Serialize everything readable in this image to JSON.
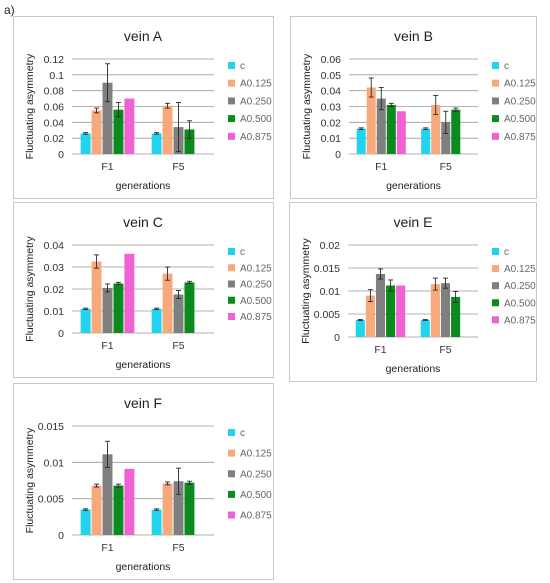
{
  "figure_label": "a)",
  "legend_colors": {
    "c": "#22d3ee",
    "A0.125": "#f7a97c",
    "A0.250": "#7f7f7f",
    "A0.500": "#0b8a1d",
    "A0.875": "#f062d2"
  },
  "chart_data": [
    {
      "type": "bar",
      "title": "vein A",
      "xlabel": "generations",
      "ylabel": "Fluctuating asymmetry",
      "categories": [
        "F1",
        "F5"
      ],
      "ylim": [
        0,
        0.12
      ],
      "yticks": [
        "0",
        "0.02",
        "0.04",
        "0.06",
        "0.08",
        "0.1",
        "0.12"
      ],
      "grid": true,
      "legend_position": "right",
      "series": [
        {
          "name": "c",
          "values": [
            0.026,
            0.026
          ],
          "errors": [
            0.001,
            0.001
          ]
        },
        {
          "name": "A0.125",
          "values": [
            0.055,
            0.061
          ],
          "errors": [
            0.003,
            0.003
          ]
        },
        {
          "name": "A0.250",
          "values": [
            0.09,
            0.034
          ],
          "errors": [
            0.024,
            0.031
          ]
        },
        {
          "name": "A0.500",
          "values": [
            0.056,
            0.031
          ],
          "errors": [
            0.009,
            0.011
          ]
        },
        {
          "name": "A0.875",
          "values": [
            0.07,
            null
          ],
          "errors": [
            0,
            null
          ]
        }
      ]
    },
    {
      "type": "bar",
      "title": "vein B",
      "xlabel": "generations",
      "ylabel": "Fluctuating asymmetry",
      "categories": [
        "F1",
        "F5"
      ],
      "ylim": [
        0,
        0.06
      ],
      "yticks": [
        "0",
        "0.01",
        "0.02",
        "0.03",
        "0.04",
        "0.05",
        "0.06"
      ],
      "grid": true,
      "legend_position": "right",
      "series": [
        {
          "name": "c",
          "values": [
            0.016,
            0.016
          ],
          "errors": [
            0.0005,
            0.0005
          ]
        },
        {
          "name": "A0.125",
          "values": [
            0.042,
            0.031
          ],
          "errors": [
            0.006,
            0.006
          ]
        },
        {
          "name": "A0.250",
          "values": [
            0.035,
            0.02
          ],
          "errors": [
            0.007,
            0.007
          ]
        },
        {
          "name": "A0.500",
          "values": [
            0.031,
            0.028
          ],
          "errors": [
            0.001,
            0.001
          ]
        },
        {
          "name": "A0.875",
          "values": [
            0.027,
            null
          ],
          "errors": [
            0,
            null
          ]
        }
      ]
    },
    {
      "type": "bar",
      "title": "vein C",
      "xlabel": "generations",
      "ylabel": "Fluctuating asymmetry",
      "categories": [
        "F1",
        "F5"
      ],
      "ylim": [
        0,
        0.04
      ],
      "yticks": [
        "0",
        "0.01",
        "0.02",
        "0.03",
        "0.04"
      ],
      "grid": true,
      "legend_position": "right",
      "series": [
        {
          "name": "c",
          "values": [
            0.011,
            0.011
          ],
          "errors": [
            0.0003,
            0.0003
          ]
        },
        {
          "name": "A0.125",
          "values": [
            0.0325,
            0.027
          ],
          "errors": [
            0.003,
            0.003
          ]
        },
        {
          "name": "A0.250",
          "values": [
            0.0205,
            0.0175
          ],
          "errors": [
            0.0018,
            0.0018
          ]
        },
        {
          "name": "A0.500",
          "values": [
            0.0225,
            0.023
          ],
          "errors": [
            0.0005,
            0.0005
          ]
        },
        {
          "name": "A0.875",
          "values": [
            0.036,
            null
          ],
          "errors": [
            0,
            null
          ]
        }
      ]
    },
    {
      "type": "bar",
      "title": "vein E",
      "xlabel": "generations",
      "ylabel": "Fluctuating asymmetry",
      "categories": [
        "F1",
        "F5"
      ],
      "ylim": [
        0,
        0.02
      ],
      "yticks": [
        "0",
        "0.005",
        "0.01",
        "0.015",
        "0.02"
      ],
      "grid": true,
      "legend_position": "right",
      "series": [
        {
          "name": "c",
          "values": [
            0.0037,
            0.0037
          ],
          "errors": [
            0.0001,
            0.0001
          ]
        },
        {
          "name": "A0.125",
          "values": [
            0.009,
            0.0115
          ],
          "errors": [
            0.0013,
            0.0013
          ]
        },
        {
          "name": "A0.250",
          "values": [
            0.0137,
            0.0117
          ],
          "errors": [
            0.0011,
            0.0011
          ]
        },
        {
          "name": "A0.500",
          "values": [
            0.0112,
            0.0087
          ],
          "errors": [
            0.0012,
            0.0012
          ]
        },
        {
          "name": "A0.875",
          "values": [
            0.0112,
            null
          ],
          "errors": [
            0,
            null
          ]
        }
      ]
    },
    {
      "type": "bar",
      "title": "vein F",
      "xlabel": "generations",
      "ylabel": "Fluctuating asymmetry",
      "categories": [
        "F1",
        "F5"
      ],
      "ylim": [
        0,
        0.015
      ],
      "yticks": [
        "0",
        "0.005",
        "0.01",
        "0.015"
      ],
      "grid": true,
      "legend_position": "right",
      "series": [
        {
          "name": "c",
          "values": [
            0.0035,
            0.0035
          ],
          "errors": [
            0.0001,
            0.0001
          ]
        },
        {
          "name": "A0.125",
          "values": [
            0.0068,
            0.0071
          ],
          "errors": [
            0.0002,
            0.0002
          ]
        },
        {
          "name": "A0.250",
          "values": [
            0.0111,
            0.0074
          ],
          "errors": [
            0.0018,
            0.0018
          ]
        },
        {
          "name": "A0.500",
          "values": [
            0.0068,
            0.0072
          ],
          "errors": [
            0.0002,
            0.0002
          ]
        },
        {
          "name": "A0.875",
          "values": [
            0.0091,
            null
          ],
          "errors": [
            0,
            null
          ]
        }
      ]
    }
  ]
}
